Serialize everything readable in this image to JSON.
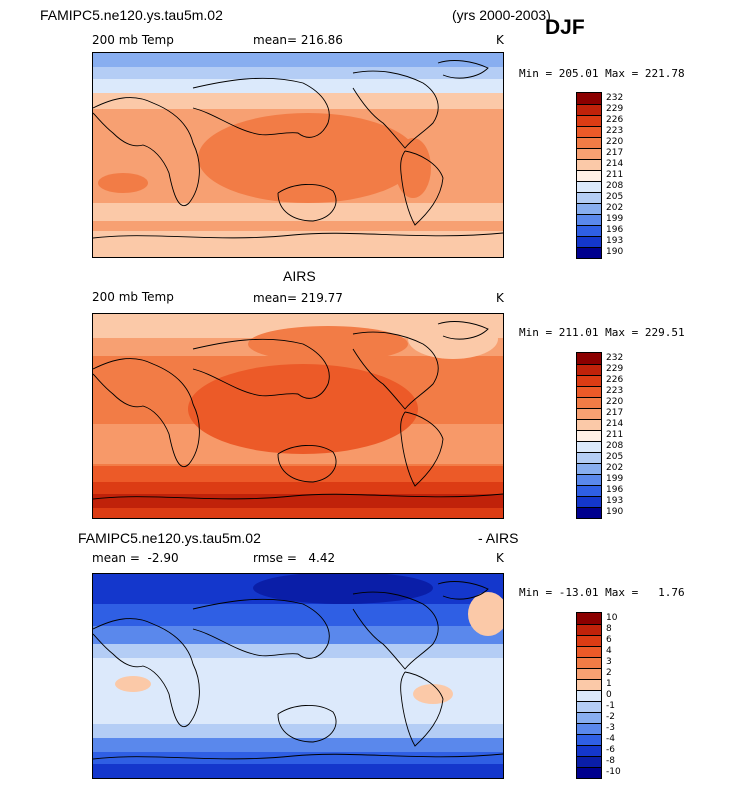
{
  "header": {
    "case_name": "FAMIPC5.ne120.ys.tau5m.02",
    "years": "(yrs 2000-2003)",
    "season": "DJF"
  },
  "panels": [
    {
      "id": "model",
      "title": "",
      "variable": "200 mb Temp",
      "mean_label": "mean=",
      "mean_value": "216.86",
      "units": "K",
      "min_label": "Min =",
      "min_value": "205.01",
      "max_label": "Max =",
      "max_value": "221.78"
    },
    {
      "id": "obs",
      "title": "AIRS",
      "variable": "200 mb Temp",
      "mean_label": "mean=",
      "mean_value": "219.77",
      "units": "K",
      "min_label": "Min =",
      "min_value": "211.01",
      "max_label": "Max =",
      "max_value": "229.51"
    },
    {
      "id": "diff",
      "title_left": "FAMIPC5.ne120.ys.tau5m.02",
      "title_right": "- AIRS",
      "mean_label": "mean =",
      "mean_value": "-2.90",
      "rmse_label": "rmse =",
      "rmse_value": "4.42",
      "units": "K",
      "min_label": "Min =",
      "min_value": "-13.01",
      "max_label": "Max =",
      "max_value": "1.76"
    }
  ],
  "colorbars": {
    "temp_levels": [
      "232",
      "229",
      "226",
      "223",
      "220",
      "217",
      "214",
      "211",
      "208",
      "205",
      "202",
      "199",
      "196",
      "193",
      "190"
    ],
    "temp_colors": [
      "#8b0000",
      "#c0220a",
      "#dc3c14",
      "#ec5a28",
      "#f27c46",
      "#f7a072",
      "#fbc9a8",
      "#fff0e6",
      "#dbe9fb",
      "#b4cdf5",
      "#88aef0",
      "#5a88ec",
      "#2f5fe4",
      "#1437cc",
      "#00008e"
    ],
    "diff_levels": [
      "10",
      "8",
      "6",
      "4",
      "3",
      "2",
      "1",
      "0",
      "-1",
      "-2",
      "-3",
      "-4",
      "-6",
      "-8",
      "-10"
    ],
    "diff_colors": [
      "#8b0000",
      "#c0220a",
      "#dc3c14",
      "#ec5a28",
      "#f27c46",
      "#f7a072",
      "#fbc9a8",
      "#dce9fb",
      "#b4cdf5",
      "#88aef0",
      "#5a88ec",
      "#2f5fe4",
      "#1437cc",
      "#0a1ea8",
      "#00008e"
    ]
  },
  "chart_data": [
    {
      "type": "heatmap",
      "title": "FAMIPC5.ne120.ys.tau5m.02 200 mb Temp DJF",
      "units": "K",
      "mean": 216.86,
      "min": 205.01,
      "max": 221.78,
      "contour_levels": [
        190,
        193,
        196,
        199,
        202,
        205,
        208,
        211,
        214,
        217,
        220,
        223,
        226,
        229,
        232
      ]
    },
    {
      "type": "heatmap",
      "title": "AIRS 200 mb Temp DJF",
      "units": "K",
      "mean": 219.77,
      "min": 211.01,
      "max": 229.51,
      "contour_levels": [
        190,
        193,
        196,
        199,
        202,
        205,
        208,
        211,
        214,
        217,
        220,
        223,
        226,
        229,
        232
      ]
    },
    {
      "type": "heatmap",
      "title": "FAMIPC5.ne120.ys.tau5m.02 - AIRS",
      "units": "K",
      "mean": -2.9,
      "rmse": 4.42,
      "min": -13.01,
      "max": 1.76,
      "contour_levels": [
        -10,
        -8,
        -6,
        -4,
        -3,
        -2,
        -1,
        0,
        1,
        2,
        3,
        4,
        6,
        8,
        10
      ]
    }
  ]
}
